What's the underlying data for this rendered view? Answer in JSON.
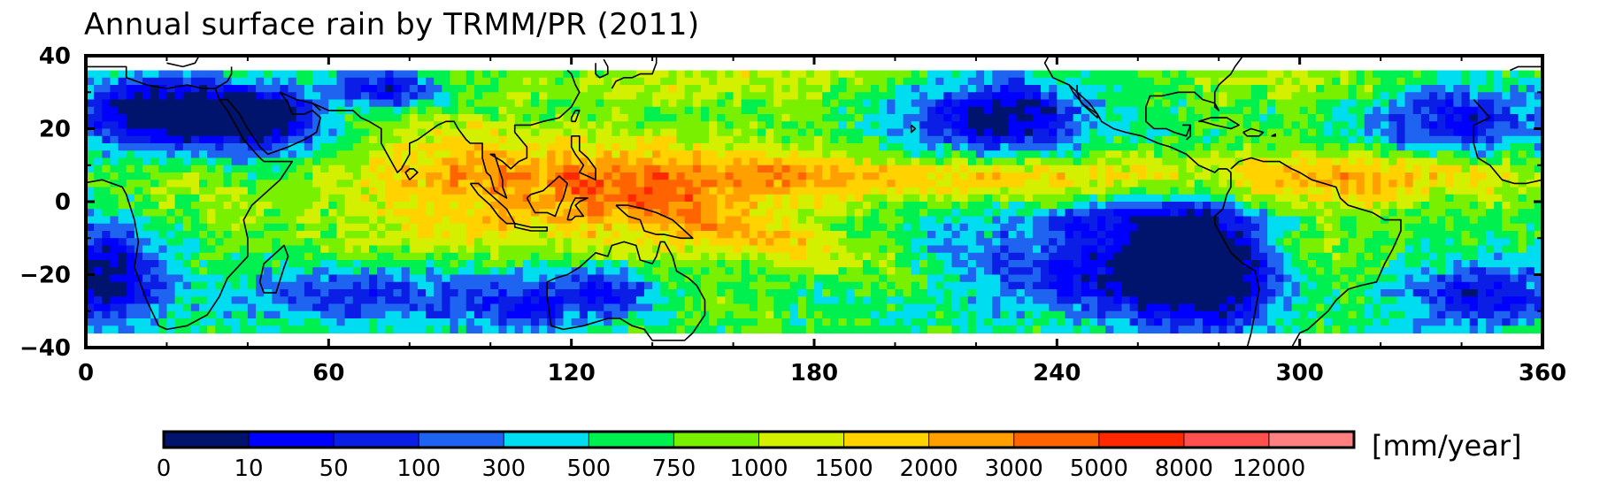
{
  "title": "Annual surface rain by TRMM/PR (2011)",
  "map": {
    "lon_range": [
      0,
      360
    ],
    "lat_range": [
      -40,
      40
    ],
    "data_lat_range": [
      -36,
      36
    ],
    "x_ticks": [
      0,
      60,
      120,
      180,
      240,
      300,
      360
    ],
    "y_ticks": [
      40,
      20,
      0,
      -20,
      -40
    ],
    "x_tick_labels": [
      "0",
      "60",
      "120",
      "180",
      "240",
      "300",
      "360"
    ],
    "y_tick_labels": [
      "40",
      "20",
      "0",
      "−20",
      "−40"
    ],
    "coastlines": true
  },
  "colorbar": {
    "unit": "[mm/year]",
    "bounds": [
      "0",
      "10",
      "50",
      "100",
      "300",
      "500",
      "750",
      "1000",
      "1500",
      "2000",
      "3000",
      "5000",
      "8000",
      "12000"
    ],
    "colors": [
      "#00146e",
      "#0000ff",
      "#0a1ee6",
      "#1e64f0",
      "#00dcf0",
      "#00f050",
      "#78f000",
      "#d2f000",
      "#ffd200",
      "#ffa000",
      "#ff6400",
      "#ff2800",
      "#ff5050",
      "#ff8080"
    ]
  }
}
